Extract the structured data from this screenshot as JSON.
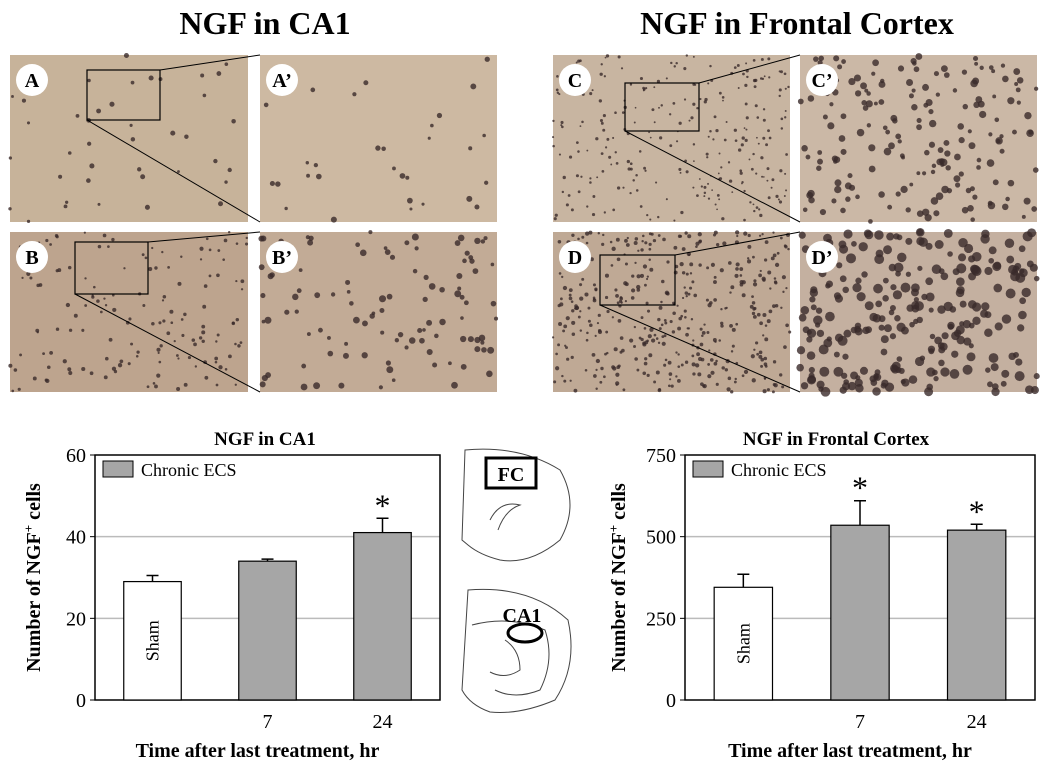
{
  "figure": {
    "headings": [
      "NGF in CA1",
      "NGF in Frontal Cortex"
    ],
    "panels": [
      "A",
      "A’",
      "B",
      "B’",
      "C",
      "C’",
      "D",
      "D’"
    ],
    "diagram_labels": [
      "FC",
      "CA1"
    ]
  },
  "chart_data": [
    {
      "type": "bar",
      "title": "NGF in CA1",
      "categories": [
        null,
        "7",
        "24"
      ],
      "values": [
        29,
        34,
        41
      ],
      "errors": [
        1.5,
        0.5,
        3.5
      ],
      "colors": [
        "#ffffff",
        "#a6a6a6",
        "#a6a6a6"
      ],
      "bar_labels": [
        "Sham",
        null,
        null
      ],
      "annotations": [
        null,
        null,
        "*"
      ],
      "legend": {
        "label": "Chronic ECS",
        "color": "#a6a6a6",
        "position": "upper-left"
      },
      "ylim": [
        0,
        60
      ],
      "yticks": [
        0,
        20,
        40,
        60
      ],
      "grid": true,
      "ylabel": {
        "text": "Number of  NGF",
        "sup": "+",
        "tail": " cells"
      },
      "xlabel": "Time after last treatment, hr"
    },
    {
      "type": "bar",
      "title": "NGF in Frontal  Cortex",
      "categories": [
        null,
        "7",
        "24"
      ],
      "values": [
        345,
        535,
        520
      ],
      "errors": [
        40,
        75,
        18
      ],
      "colors": [
        "#ffffff",
        "#a6a6a6",
        "#a6a6a6"
      ],
      "bar_labels": [
        "Sham",
        null,
        null
      ],
      "annotations": [
        null,
        "*",
        "*"
      ],
      "legend": {
        "label": "Chronic ECS",
        "color": "#a6a6a6",
        "position": "upper-left"
      },
      "ylim": [
        0,
        750
      ],
      "yticks": [
        0,
        250,
        500,
        750
      ],
      "grid": true,
      "ylabel": {
        "text": "Number of  NGF",
        "sup": "+",
        "tail": " cells"
      },
      "xlabel": "Time after last treatment, hr"
    }
  ]
}
